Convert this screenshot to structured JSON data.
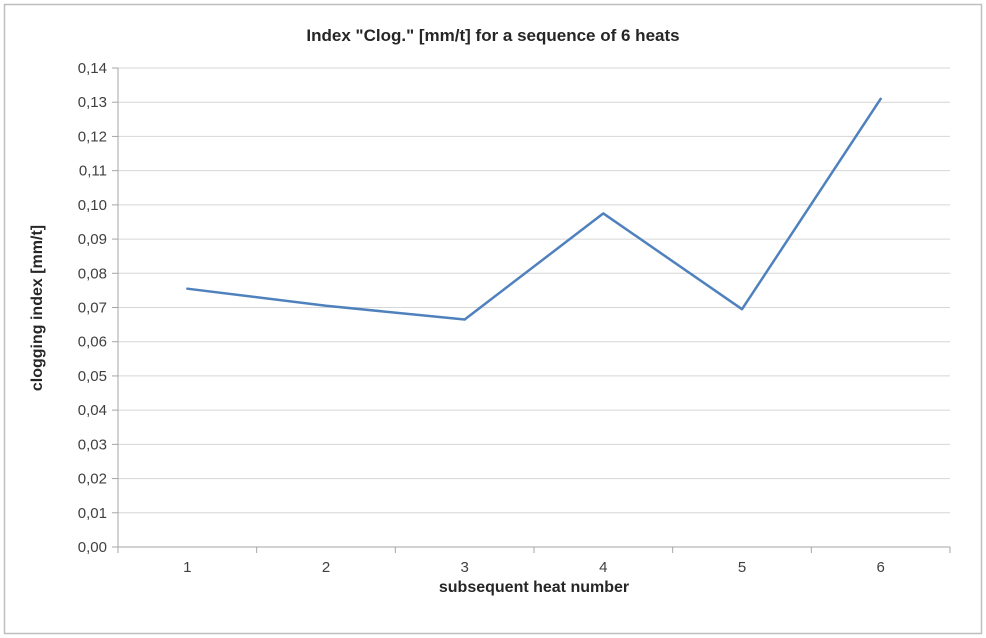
{
  "chart_data": {
    "type": "line",
    "title": "Index \"Clog.\" [mm/t] for a sequence of 6 heats",
    "xlabel": "subsequent heat number",
    "ylabel": "clogging index [mm/t]",
    "categories": [
      "1",
      "2",
      "3",
      "4",
      "5",
      "6"
    ],
    "values": [
      0.0755,
      0.0705,
      0.0665,
      0.0975,
      0.0695,
      0.131
    ],
    "ylim": [
      0,
      0.14
    ],
    "ytick_step": 0.01,
    "decimal_separator": ",",
    "grid": true,
    "legend_position": "none",
    "line_color": "#4f81bd",
    "gridline_color": "#d6d6d6",
    "axis_color": "#a6a6a6",
    "text_color": "#404040"
  }
}
